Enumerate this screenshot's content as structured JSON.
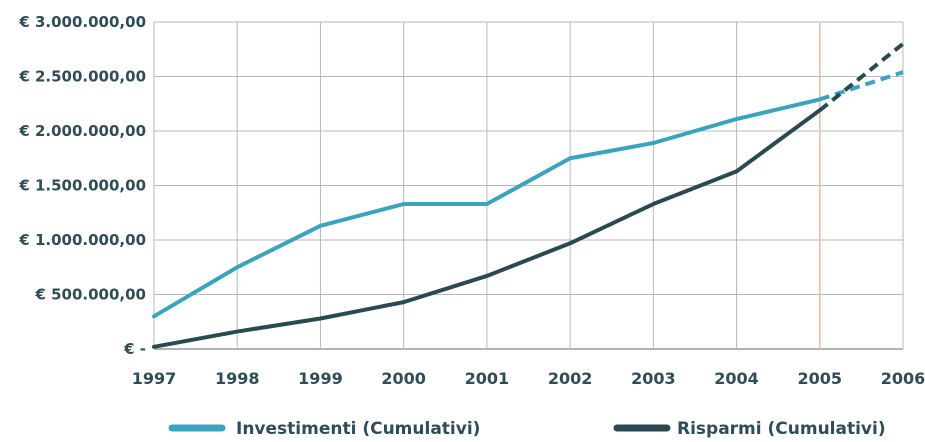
{
  "chart_data": {
    "type": "line",
    "title": "",
    "xlabel": "",
    "ylabel": "",
    "categories": [
      "1997",
      "1998",
      "1999",
      "2000",
      "2001",
      "2002",
      "2003",
      "2004",
      "2005",
      "2006"
    ],
    "ylim": [
      0,
      3000000
    ],
    "y_ticks": [
      {
        "value": 0,
        "label": "€ -"
      },
      {
        "value": 500000,
        "label": "€ 500.000,00"
      },
      {
        "value": 1000000,
        "label": "€ 1.000.000,00"
      },
      {
        "value": 1500000,
        "label": "€ 1.500.000,00"
      },
      {
        "value": 2000000,
        "label": "€ 2.000.000,00"
      },
      {
        "value": 2500000,
        "label": "€ 2.500.000,00"
      },
      {
        "value": 3000000,
        "label": "€ 3.000.000,00"
      }
    ],
    "grid": true,
    "legend_position": "bottom",
    "marker_line": {
      "category": "2005",
      "color": "#e8b8a8"
    },
    "projection_from": "2005",
    "series": [
      {
        "name": "Investimenti (Cumulativi)",
        "color": "#3aa3bd",
        "values": [
          300000,
          750000,
          1130000,
          1330000,
          1330000,
          1750000,
          1890000,
          2110000,
          2290000,
          2540000
        ]
      },
      {
        "name": "Risparmi (Cumulativi)",
        "color": "#2a4a52",
        "values": [
          20000,
          160000,
          280000,
          430000,
          670000,
          970000,
          1330000,
          1630000,
          2190000,
          2800000
        ]
      }
    ]
  }
}
